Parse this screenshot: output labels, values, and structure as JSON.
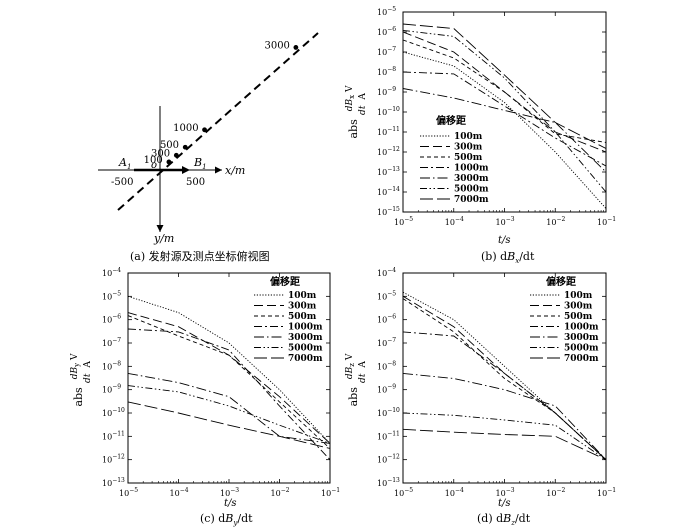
{
  "panel_a": {
    "caption": "(a) 发射源及测点坐标俯视图",
    "x_axis_label": "x/m",
    "y_axis_label": "y/m",
    "origin_label": "o",
    "a1_label": "A",
    "a1_sub": "1",
    "b1_label": "B",
    "b1_sub": "1",
    "neg_label": "-500",
    "pos_label": "500",
    "points": [
      {
        "label": "100",
        "u": 100
      },
      {
        "label": "300",
        "u": 300
      },
      {
        "label": "500",
        "u": 500
      },
      {
        "label": "1000",
        "u": 1000
      },
      {
        "label": "3000",
        "u": 3000
      }
    ]
  },
  "legend_title": "偏移距",
  "legend_entries": [
    "100m",
    "300m",
    "500m",
    "1000m",
    "3000m",
    "5000m",
    "7000m"
  ],
  "chart_data": [
    {
      "id": "b",
      "type": "line",
      "caption": "(b) dBx/dt",
      "caption_prefix": "(b) d",
      "caption_var": "B",
      "caption_sub": "x",
      "caption_suffix": "/dt",
      "xlabel": "t/s",
      "ylabel_prefix": "abs",
      "ylabel_num": "dB",
      "ylabel_num_sub": "x",
      "ylabel_den": "dt",
      "ylabel_unit_num": "V",
      "ylabel_unit_den": "A",
      "x_scale": "log",
      "y_scale": "log",
      "xlim": [
        1e-05,
        0.1
      ],
      "ylim": [
        1e-15,
        1e-05
      ],
      "x_ticks": [
        -5,
        -4,
        -3,
        -2,
        -1
      ],
      "y_ticks": [
        -15,
        -14,
        -13,
        -12,
        -11,
        -10,
        -9,
        -8,
        -7,
        -6,
        -5
      ],
      "series": [
        {
          "name": "100m",
          "x": [
            1e-05,
            0.0001,
            0.001,
            0.01,
            0.1
          ],
          "y": [
            1e-07,
            2e-08,
            3e-10,
            1e-12,
            1.5e-15
          ]
        },
        {
          "name": "300m",
          "x": [
            1e-05,
            0.0001,
            0.001,
            0.01,
            0.1
          ],
          "y": [
            1e-06,
            1e-07,
            1e-09,
            1e-11,
            1e-12
          ]
        },
        {
          "name": "500m",
          "x": [
            1e-05,
            0.0001,
            0.001,
            0.01,
            0.1
          ],
          "y": [
            4e-07,
            5e-08,
            1e-09,
            8e-12,
            3e-12
          ]
        },
        {
          "name": "1000m",
          "x": [
            1e-05,
            0.0001,
            0.001,
            0.01,
            0.1
          ],
          "y": [
            1e-08,
            8e-09,
            2e-10,
            5e-12,
            2e-13
          ]
        },
        {
          "name": "3000m",
          "x": [
            1e-05,
            0.0001,
            0.001,
            0.01,
            0.1
          ],
          "y": [
            1.5e-09,
            5e-10,
            1.2e-10,
            3e-11,
            1e-13
          ]
        },
        {
          "name": "5000m",
          "x": [
            1e-05,
            0.0001,
            0.001,
            0.01,
            0.1
          ],
          "y": [
            1.2e-06,
            6e-07,
            5e-09,
            1e-11,
            1e-14
          ]
        },
        {
          "name": "7000m",
          "x": [
            1e-05,
            0.0001,
            0.001,
            0.01,
            0.1
          ],
          "y": [
            2.5e-06,
            1.5e-06,
            7e-09,
            3e-11,
            1.5e-12
          ]
        }
      ]
    },
    {
      "id": "c",
      "type": "line",
      "caption": "(c) dBy/dt",
      "caption_prefix": "(c) d",
      "caption_var": "B",
      "caption_sub": "y",
      "caption_suffix": "/dt",
      "xlabel": "t/s",
      "ylabel_prefix": "abs",
      "ylabel_num": "dB",
      "ylabel_num_sub": "y",
      "ylabel_den": "dt",
      "ylabel_unit_num": "V",
      "ylabel_unit_den": "A",
      "x_scale": "log",
      "y_scale": "log",
      "xlim": [
        1e-05,
        0.1
      ],
      "ylim": [
        1e-13,
        0.0001
      ],
      "x_ticks": [
        -5,
        -4,
        -3,
        -2,
        -1
      ],
      "y_ticks": [
        -13,
        -12,
        -11,
        -10,
        -9,
        -8,
        -7,
        -6,
        -5,
        -4
      ],
      "series": [
        {
          "name": "100m",
          "x": [
            1e-05,
            0.0001,
            0.001,
            0.01,
            0.1
          ],
          "y": [
            1e-05,
            2e-06,
            1e-07,
            1e-09,
            5e-12
          ]
        },
        {
          "name": "300m",
          "x": [
            1e-05,
            0.0001,
            0.001,
            0.01,
            0.1
          ],
          "y": [
            2e-06,
            5e-07,
            3e-08,
            5e-10,
            5e-12
          ]
        },
        {
          "name": "500m",
          "x": [
            1e-05,
            0.0001,
            0.001,
            0.01,
            0.1
          ],
          "y": [
            1.5e-06,
            2e-07,
            3e-08,
            3e-10,
            3e-12
          ]
        },
        {
          "name": "1000m",
          "x": [
            1e-05,
            0.0001,
            0.001,
            0.01,
            0.1
          ],
          "y": [
            4e-07,
            3e-07,
            5e-08,
            2e-10,
            1e-12
          ]
        },
        {
          "name": "3000m",
          "x": [
            1e-05,
            0.0001,
            0.001,
            0.01,
            0.1
          ],
          "y": [
            5e-09,
            2e-09,
            5e-10,
            1e-11,
            5e-12
          ]
        },
        {
          "name": "5000m",
          "x": [
            1e-05,
            0.0001,
            0.001,
            0.01,
            0.1
          ],
          "y": [
            1.5e-09,
            8e-10,
            2e-10,
            3e-11,
            5e-12
          ]
        },
        {
          "name": "7000m",
          "x": [
            1e-05,
            0.0001,
            0.001,
            0.01,
            0.1
          ],
          "y": [
            3e-10,
            1e-10,
            3e-11,
            1e-11,
            3e-12
          ]
        }
      ]
    },
    {
      "id": "d",
      "type": "line",
      "caption": "(d) dBz/dt",
      "caption_prefix": "(d) d",
      "caption_var": "B",
      "caption_sub": "z",
      "caption_suffix": "/dt",
      "xlabel": "t/s",
      "ylabel_prefix": "abs",
      "ylabel_num": "dB",
      "ylabel_num_sub": "z",
      "ylabel_den": "dt",
      "ylabel_unit_num": "V",
      "ylabel_unit_den": "A",
      "x_scale": "log",
      "y_scale": "log",
      "xlim": [
        1e-05,
        0.1
      ],
      "ylim": [
        1e-13,
        0.0001
      ],
      "x_ticks": [
        -5,
        -4,
        -3,
        -2,
        -1
      ],
      "y_ticks": [
        -13,
        -12,
        -11,
        -10,
        -9,
        -8,
        -7,
        -6,
        -5,
        -4
      ],
      "series": [
        {
          "name": "100m",
          "x": [
            1e-05,
            0.0001,
            0.001,
            0.01,
            0.1
          ],
          "y": [
            1.5e-05,
            1e-06,
            1e-08,
            1e-10,
            1e-12
          ]
        },
        {
          "name": "300m",
          "x": [
            1e-05,
            0.0001,
            0.001,
            0.01,
            0.1
          ],
          "y": [
            1e-05,
            5e-07,
            5e-09,
            1e-10,
            1e-12
          ]
        },
        {
          "name": "500m",
          "x": [
            1e-05,
            0.0001,
            0.001,
            0.01,
            0.1
          ],
          "y": [
            8e-06,
            3e-07,
            3e-09,
            1e-10,
            1e-12
          ]
        },
        {
          "name": "1000m",
          "x": [
            1e-05,
            0.0001,
            0.001,
            0.01,
            0.1
          ],
          "y": [
            3e-07,
            2e-07,
            5e-09,
            1e-10,
            1e-12
          ]
        },
        {
          "name": "3000m",
          "x": [
            1e-05,
            0.0001,
            0.001,
            0.01,
            0.1
          ],
          "y": [
            5e-09,
            3e-09,
            1e-09,
            2e-10,
            1e-12
          ]
        },
        {
          "name": "5000m",
          "x": [
            1e-05,
            0.0001,
            0.001,
            0.01,
            0.1
          ],
          "y": [
            1e-10,
            8e-11,
            5e-11,
            3e-11,
            1e-12
          ]
        },
        {
          "name": "7000m",
          "x": [
            1e-05,
            0.0001,
            0.001,
            0.01,
            0.1
          ],
          "y": [
            2e-11,
            1.5e-11,
            1.2e-11,
            1e-11,
            1e-12
          ]
        }
      ]
    }
  ]
}
